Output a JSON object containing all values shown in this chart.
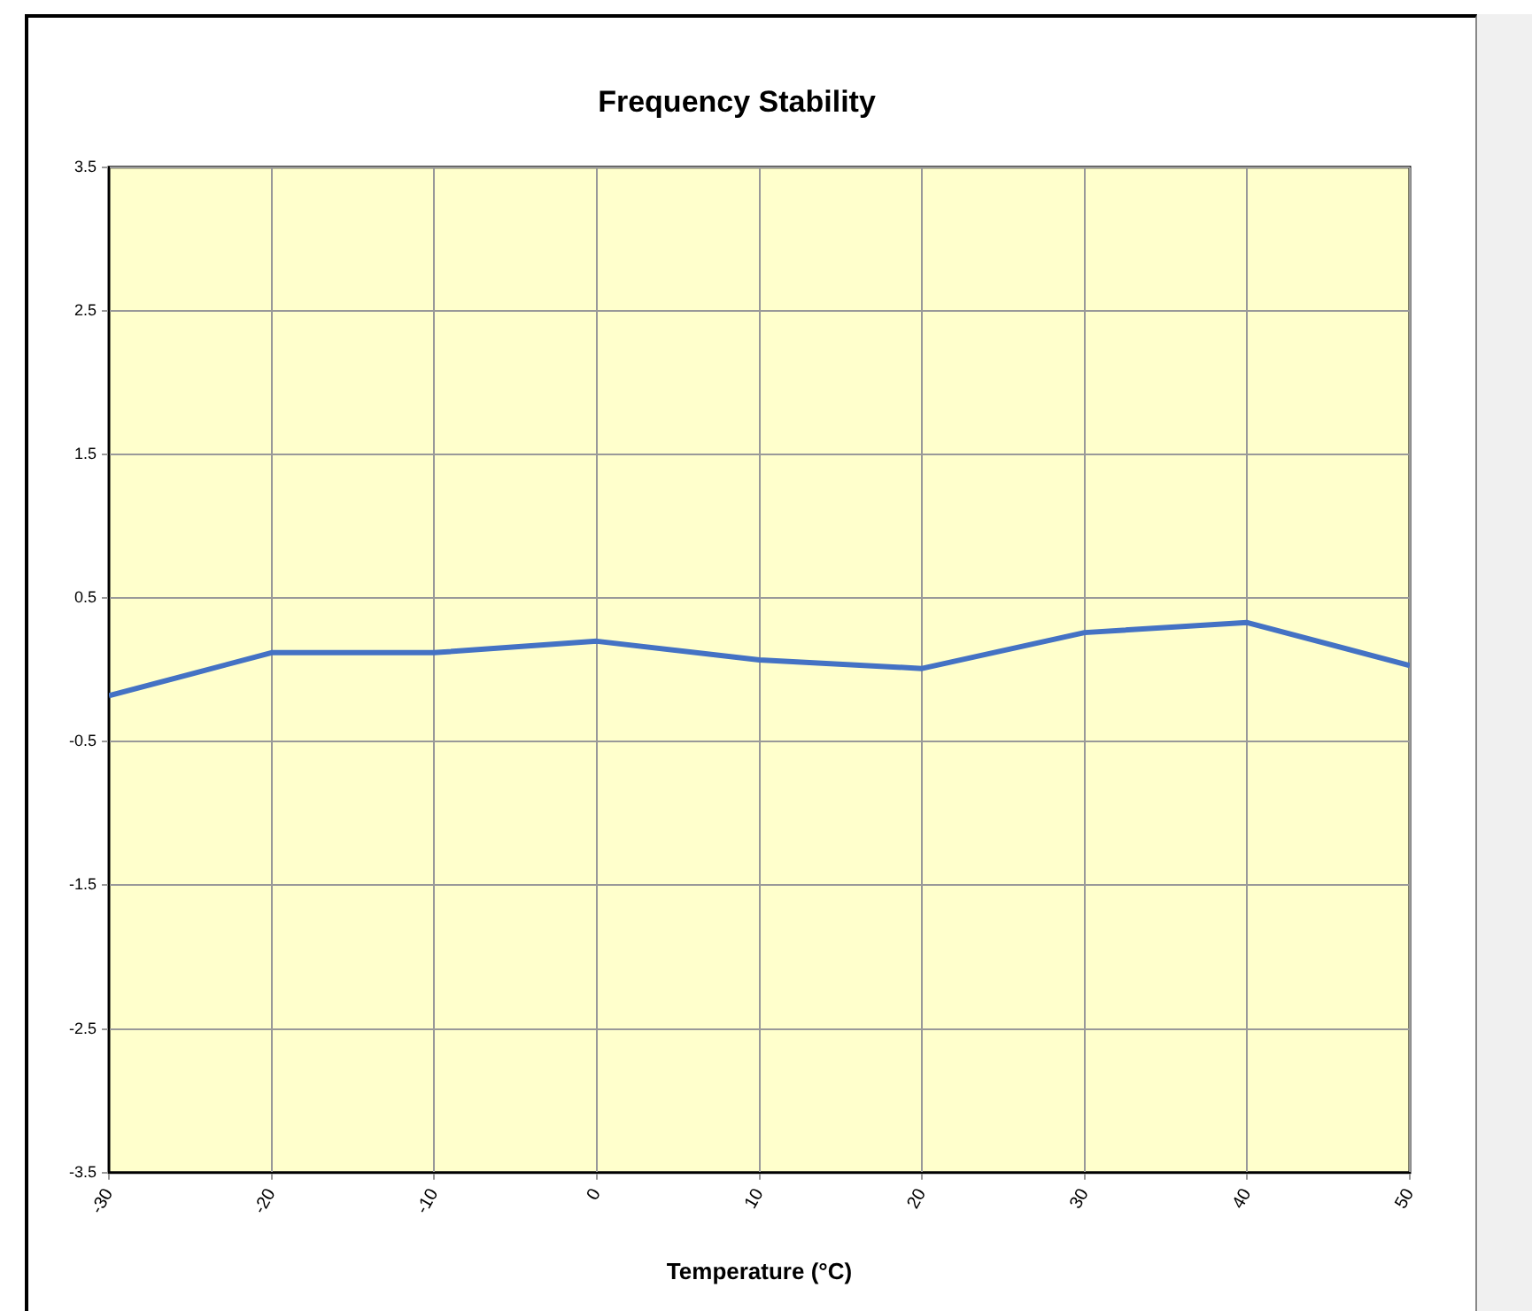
{
  "chart_data": {
    "type": "line",
    "title": "Frequency Stability",
    "xlabel": "Temperature (°C)",
    "x": [
      -30,
      -20,
      -10,
      0,
      10,
      20,
      30,
      40,
      50
    ],
    "series": [
      {
        "color": "#4472c4",
        "values": [
          -0.18,
          0.12,
          0.12,
          0.2,
          0.07,
          0.01,
          0.26,
          0.33,
          0.03
        ]
      }
    ],
    "xlim": [
      -30,
      50
    ],
    "xticks": [
      -30,
      -20,
      -10,
      0,
      10,
      20,
      30,
      40,
      50
    ],
    "ylim": [
      -3.5,
      3.5
    ],
    "yticks": [
      -3.5,
      -2.5,
      -1.5,
      -0.5,
      0.5,
      1.5,
      2.5,
      3.5
    ],
    "grid": true,
    "legend": false,
    "marker": "none",
    "line_style": "solid"
  }
}
